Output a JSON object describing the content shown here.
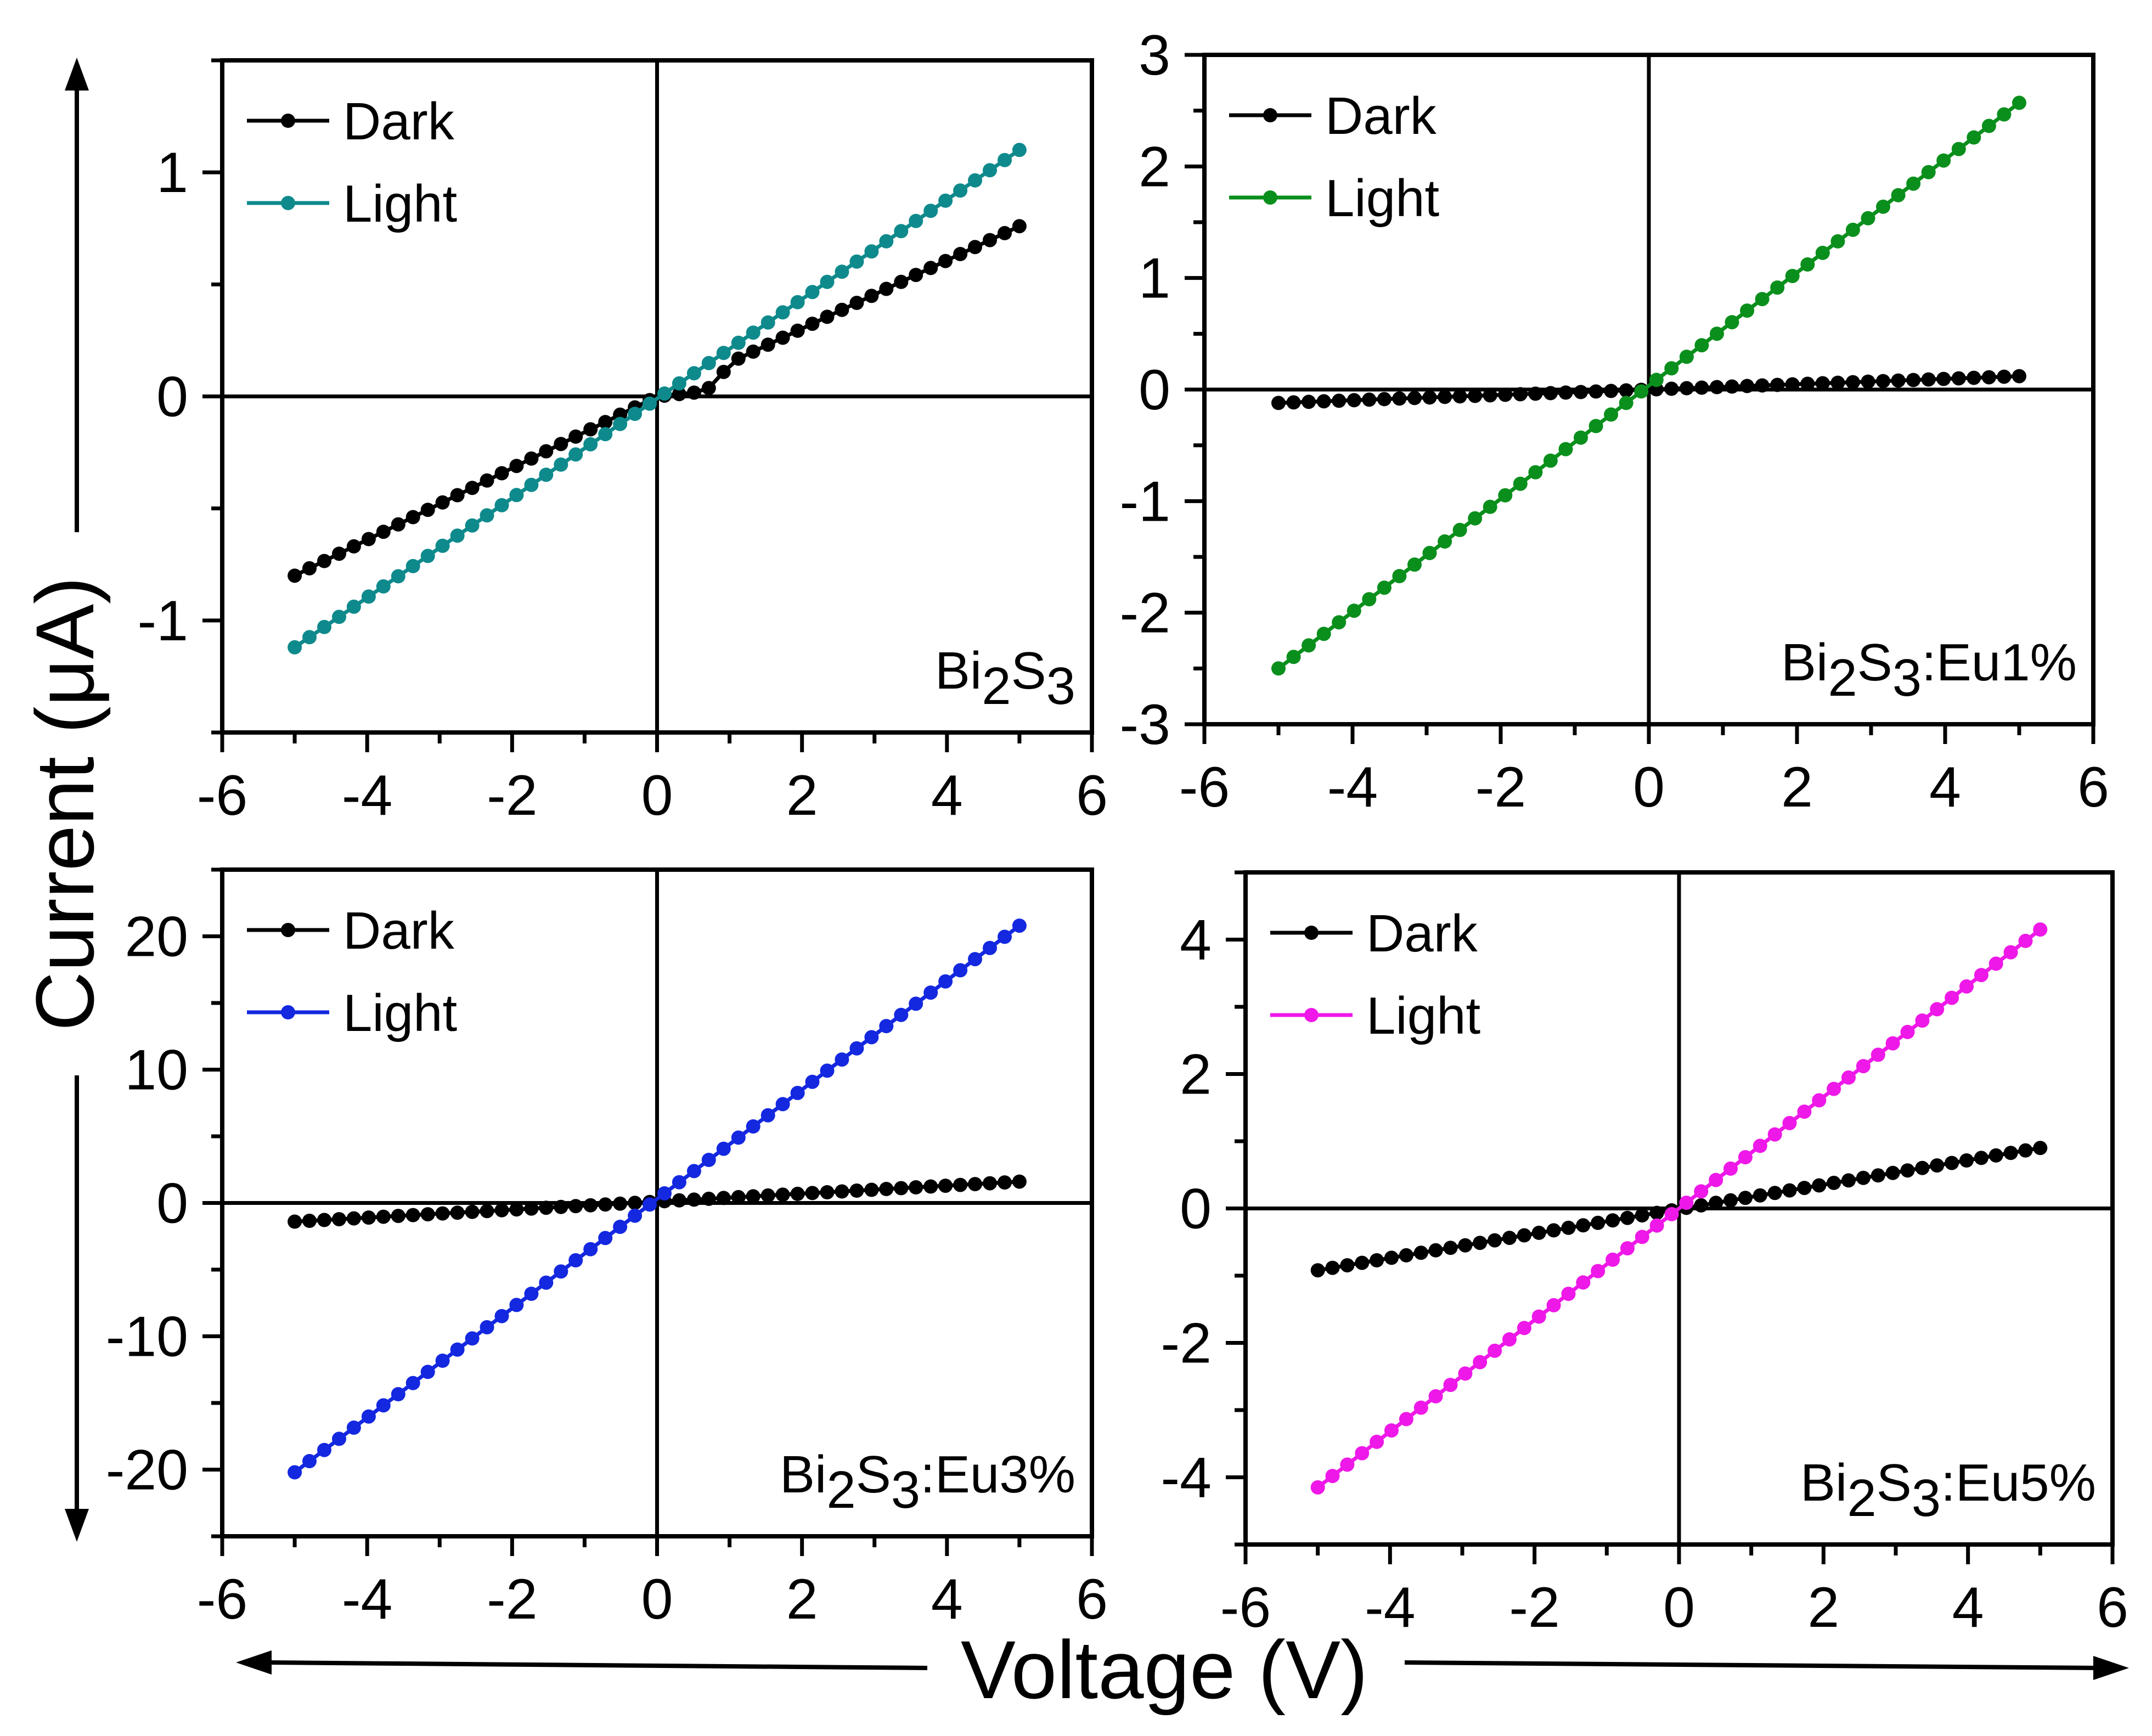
{
  "figure": {
    "xlabel": "Voltage (V)",
    "ylabel": "Current (μA)"
  },
  "chart_data": [
    {
      "type": "line",
      "panel": "top-left",
      "title": "",
      "label": {
        "base": "Bi",
        "sub1": "2",
        "mid": "S",
        "sub2": "3",
        "suffix": ""
      },
      "xlim": [
        -6,
        6
      ],
      "ylim": [
        -1.5,
        1.5
      ],
      "xticks": [
        -6,
        -4,
        -2,
        0,
        2,
        4,
        6
      ],
      "yticks": [
        -1,
        0,
        1
      ],
      "legend_position": "top-left",
      "series": [
        {
          "name": "Dark",
          "color": "#000000",
          "voltage": [
            -5,
            0,
            0.6,
            0.8,
            1,
            5
          ],
          "current": [
            -0.8,
            0,
            0.02,
            0.05,
            0.15,
            0.76
          ]
        },
        {
          "name": "Light",
          "color": "#0e8a8c",
          "voltage": [
            -5,
            5
          ],
          "current": [
            -1.12,
            1.1
          ]
        }
      ]
    },
    {
      "type": "line",
      "panel": "top-right",
      "title": "",
      "label": {
        "base": "Bi",
        "sub1": "2",
        "mid": "S",
        "sub2": "3",
        "suffix": ":Eu1%"
      },
      "xlim": [
        -6,
        6
      ],
      "ylim": [
        -3,
        3
      ],
      "xticks": [
        -6,
        -4,
        -2,
        0,
        2,
        4,
        6
      ],
      "yticks": [
        -3,
        -2,
        -1,
        0,
        1,
        2,
        3
      ],
      "legend_position": "top-left",
      "series": [
        {
          "name": "Dark",
          "color": "#000000",
          "voltage": [
            -5,
            5
          ],
          "current": [
            -0.12,
            0.12
          ]
        },
        {
          "name": "Light",
          "color": "#0a8f1c",
          "voltage": [
            -5,
            5
          ],
          "current": [
            -2.5,
            2.57
          ]
        }
      ]
    },
    {
      "type": "line",
      "panel": "bottom-left",
      "title": "",
      "label": {
        "base": "Bi",
        "sub1": "2",
        "mid": "S",
        "sub2": "3",
        "suffix": ":Eu3%"
      },
      "xlim": [
        -6,
        6
      ],
      "ylim": [
        -25,
        25
      ],
      "xticks": [
        -6,
        -4,
        -2,
        0,
        2,
        4,
        6
      ],
      "yticks": [
        -20,
        -10,
        0,
        10,
        20
      ],
      "legend_position": "top-left",
      "series": [
        {
          "name": "Dark",
          "color": "#000000",
          "voltage": [
            -5,
            5
          ],
          "current": [
            -1.4,
            1.6
          ]
        },
        {
          "name": "Light",
          "color": "#1428e0",
          "voltage": [
            -5,
            5
          ],
          "current": [
            -20.2,
            20.8
          ]
        }
      ]
    },
    {
      "type": "line",
      "panel": "bottom-right",
      "title": "",
      "label": {
        "base": "Bi",
        "sub1": "2",
        "mid": "S",
        "sub2": "3",
        "suffix": ":Eu5%"
      },
      "xlim": [
        -6,
        6
      ],
      "ylim": [
        -5,
        5
      ],
      "xticks": [
        -6,
        -4,
        -2,
        0,
        2,
        4,
        6
      ],
      "yticks": [
        -4,
        -2,
        0,
        2,
        4
      ],
      "legend_position": "top-left",
      "series": [
        {
          "name": "Dark",
          "color": "#000000",
          "voltage": [
            -5,
            5
          ],
          "current": [
            -0.92,
            0.9
          ]
        },
        {
          "name": "Light",
          "color": "#ee18e8",
          "voltage": [
            -5,
            5
          ],
          "current": [
            -4.15,
            4.15
          ]
        }
      ]
    }
  ]
}
